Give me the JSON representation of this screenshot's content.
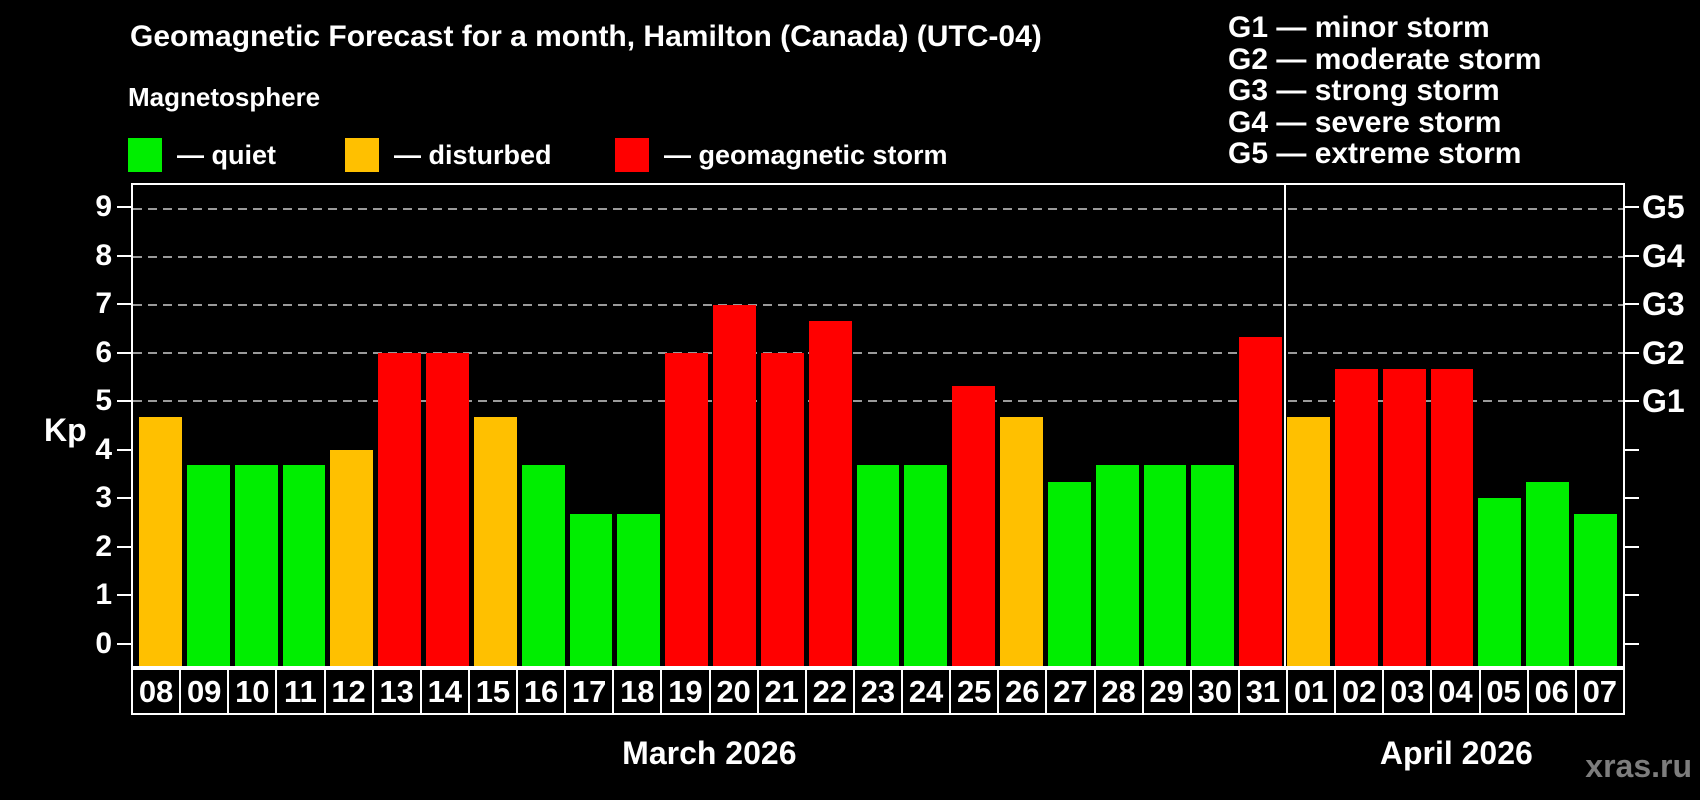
{
  "title": "Geomagnetic Forecast for a month, Hamilton (Canada) (UTC-04)",
  "subtitle": "Magnetosphere",
  "legend": [
    {
      "label": "— quiet",
      "status": "quiet"
    },
    {
      "label": "— disturbed",
      "status": "disturbed"
    },
    {
      "label": "— geomagnetic storm",
      "status": "storm"
    }
  ],
  "g_legend": [
    "G1 — minor storm",
    "G2 — moderate storm",
    "G3 — strong storm",
    "G4 — severe storm",
    "G5 — extreme storm"
  ],
  "y_axis": {
    "label": "Kp",
    "ticks": [
      0,
      1,
      2,
      3,
      4,
      5,
      6,
      7,
      8,
      9
    ]
  },
  "right_axis": {
    "labels": [
      {
        "value": 9,
        "label": "G5"
      },
      {
        "value": 8,
        "label": "G4"
      },
      {
        "value": 7,
        "label": "G3"
      },
      {
        "value": 6,
        "label": "G2"
      },
      {
        "value": 5,
        "label": "G1"
      }
    ]
  },
  "months": [
    {
      "label": "March 2026",
      "days": 24
    },
    {
      "label": "April 2026",
      "days": 7
    }
  ],
  "watermark": "xras.ru",
  "colors": {
    "quiet": "#00ee00",
    "disturbed": "#ffc000",
    "storm": "#ff0000",
    "grid": "#9a9a9a",
    "axis": "#ffffff",
    "background": "#000000",
    "watermark": "#7d7d7d"
  },
  "chart_data": {
    "type": "bar",
    "title": "Geomagnetic Forecast for a month, Hamilton (Canada) (UTC-04)",
    "xlabel": "",
    "ylabel": "Kp",
    "ylim": [
      -0.5,
      9.5
    ],
    "gridlines": [
      5,
      6,
      7,
      8,
      9
    ],
    "legend_position": "top-left",
    "categories": [
      "08",
      "09",
      "10",
      "11",
      "12",
      "13",
      "14",
      "15",
      "16",
      "17",
      "18",
      "19",
      "20",
      "21",
      "22",
      "23",
      "24",
      "25",
      "26",
      "27",
      "28",
      "29",
      "30",
      "31",
      "01",
      "02",
      "03",
      "04",
      "05",
      "06",
      "07"
    ],
    "values": [
      4.67,
      3.67,
      3.67,
      3.67,
      4.0,
      6.0,
      6.0,
      4.67,
      3.67,
      2.67,
      2.67,
      6.0,
      7.0,
      6.0,
      6.67,
      3.67,
      3.67,
      5.33,
      4.67,
      3.33,
      3.67,
      3.67,
      3.67,
      6.33,
      4.67,
      5.67,
      5.67,
      5.67,
      3.0,
      3.33,
      2.67
    ],
    "statuses": [
      "disturbed",
      "quiet",
      "quiet",
      "quiet",
      "disturbed",
      "storm",
      "storm",
      "disturbed",
      "quiet",
      "quiet",
      "quiet",
      "storm",
      "storm",
      "storm",
      "storm",
      "quiet",
      "quiet",
      "storm",
      "disturbed",
      "quiet",
      "quiet",
      "quiet",
      "quiet",
      "storm",
      "disturbed",
      "storm",
      "storm",
      "storm",
      "quiet",
      "quiet",
      "quiet"
    ]
  }
}
